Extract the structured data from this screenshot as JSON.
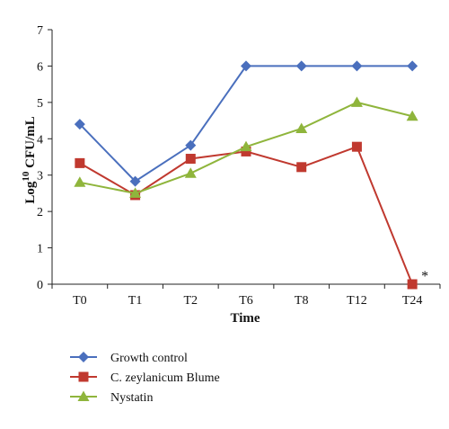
{
  "chart_data": {
    "type": "line",
    "categories": [
      "T0",
      "T1",
      "T2",
      "T6",
      "T8",
      "T12",
      "T24"
    ],
    "xlabel": "Time",
    "ylabel_base": "Log",
    "ylabel_sup": "10",
    "ylabel_rest": " CFU/mL",
    "ylim": [
      0,
      7
    ],
    "yticks": [
      0,
      1,
      2,
      3,
      4,
      5,
      6,
      7
    ],
    "grid": false,
    "legend_position": "bottom-left",
    "series": [
      {
        "name": "Growth control",
        "values": [
          4.4,
          2.83,
          3.82,
          6.0,
          6.0,
          6.0,
          6.0
        ],
        "color": "#4a6fbd",
        "marker": "diamond"
      },
      {
        "name": "C. zeylanicum Blume",
        "values": [
          3.33,
          2.45,
          3.45,
          3.65,
          3.22,
          3.78,
          0.0
        ],
        "color": "#c0392f",
        "marker": "square"
      },
      {
        "name": "Nystatin",
        "values": [
          2.8,
          2.5,
          3.05,
          3.78,
          4.28,
          5.0,
          4.62
        ],
        "color": "#8fb53c",
        "marker": "triangle"
      }
    ],
    "annotations": [
      {
        "text": "*",
        "category": "T24",
        "value": 0
      }
    ]
  }
}
